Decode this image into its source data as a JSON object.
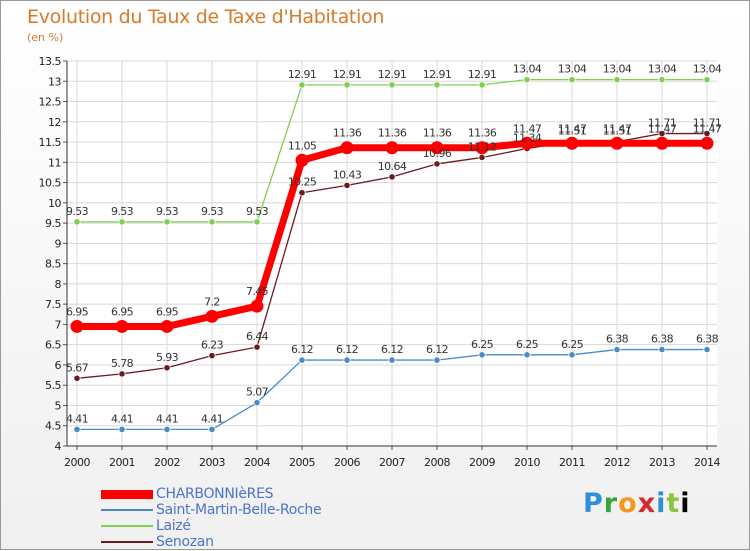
{
  "page": {
    "title": "Evolution du Taux de Taxe d'Habitation",
    "subtitle": "(en %)",
    "logo": "Proxiti"
  },
  "chart_data": {
    "type": "line",
    "title": "Evolution du Taux de Taxe d'Habitation",
    "ylabel": "(en %)",
    "xlabel": "",
    "x": [
      "2000",
      "2001",
      "2002",
      "2003",
      "2004",
      "2005",
      "2006",
      "2007",
      "2008",
      "2009",
      "2010",
      "2011",
      "2012",
      "2013",
      "2014"
    ],
    "ylim": [
      4,
      13.5
    ],
    "yticks": [
      4,
      4.5,
      5,
      5.5,
      6,
      6.5,
      7,
      7.5,
      8,
      8.5,
      9,
      9.5,
      10,
      10.5,
      11,
      11.5,
      12,
      12.5,
      13,
      13.5
    ],
    "grid": true,
    "legend_position": "bottom-left",
    "series": [
      {
        "name": "CHARBONNIèRES",
        "color": "#ff0000",
        "values": [
          6.95,
          6.95,
          6.95,
          7.2,
          7.45,
          11.05,
          11.36,
          11.36,
          11.36,
          11.36,
          11.47,
          11.47,
          11.47,
          11.47,
          11.47
        ]
      },
      {
        "name": "Saint-Martin-Belle-Roche",
        "color": "#4a8ac8",
        "values": [
          4.41,
          4.41,
          4.41,
          4.41,
          5.07,
          6.12,
          6.12,
          6.12,
          6.12,
          6.25,
          6.25,
          6.25,
          6.38,
          6.38,
          6.38
        ]
      },
      {
        "name": "Laizé",
        "color": "#80d050",
        "values": [
          9.53,
          9.53,
          9.53,
          9.53,
          9.53,
          12.91,
          12.91,
          12.91,
          12.91,
          12.91,
          13.04,
          13.04,
          13.04,
          13.04,
          13.04
        ]
      },
      {
        "name": "Senozan",
        "color": "#6a1b20",
        "values": [
          5.67,
          5.78,
          5.93,
          6.23,
          6.44,
          10.25,
          10.43,
          10.64,
          10.96,
          11.12,
          11.34,
          11.51,
          11.51,
          11.71,
          11.71
        ]
      }
    ]
  }
}
